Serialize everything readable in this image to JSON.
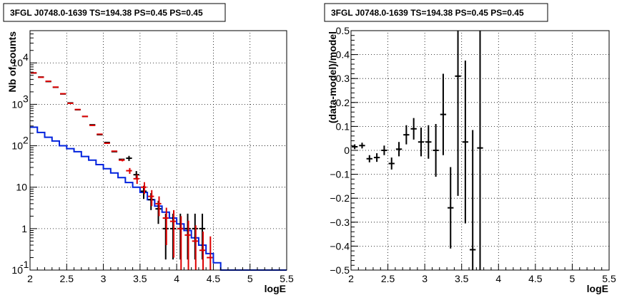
{
  "chart_data": [
    {
      "type": "histogram",
      "title": "3FGL J0748.0-1639 TS=194.38 PS=0.45 PS=0.45",
      "xlabel": "logE",
      "ylabel": "Nb of counts",
      "xlim": [
        2,
        5.5
      ],
      "ylim": [
        0.1,
        60000
      ],
      "yscale": "log",
      "grid": true,
      "colors": {
        "data": "#000000",
        "model": "#dd0000",
        "background": "#0022dd"
      },
      "xticks": [
        "2",
        "2.5",
        "3",
        "3.5",
        "4",
        "4.5",
        "5",
        "5.5"
      ],
      "yticks": [
        {
          "value": 0.1,
          "base": "10",
          "exp": "-1"
        },
        {
          "value": 1,
          "base": "1",
          "exp": ""
        },
        {
          "value": 10,
          "base": "10",
          "exp": ""
        },
        {
          "value": 100,
          "base": "10",
          "exp": "2"
        },
        {
          "value": 1000,
          "base": "10",
          "exp": "3"
        },
        {
          "value": 10000,
          "base": "10",
          "exp": "4"
        }
      ],
      "bin_edges": [
        2.0,
        2.1,
        2.2,
        2.3,
        2.4,
        2.5,
        2.6,
        2.7,
        2.8,
        2.9,
        3.0,
        3.1,
        3.2,
        3.3,
        3.4,
        3.5,
        3.6,
        3.7,
        3.8,
        3.9,
        4.0,
        4.1,
        4.2,
        4.3,
        4.4,
        4.5
      ],
      "bin_edges_note_free": true,
      "data_counts": [
        5700,
        4550,
        3550,
        2580,
        1780,
        1080,
        740,
        510,
        320,
        185,
        120,
        72,
        47,
        50,
        20,
        8,
        5,
        3,
        1,
        1,
        1,
        1,
        1,
        1,
        0
      ],
      "data_err_low": [
        0,
        0,
        0,
        0,
        0,
        0,
        0,
        0,
        0,
        0,
        0,
        0,
        0,
        7,
        4.5,
        2.8,
        2.2,
        1.7,
        0.82,
        0.82,
        0.82,
        0.82,
        0.82,
        0.82,
        0
      ],
      "data_err_high": [
        0,
        0,
        0,
        0,
        0,
        0,
        0,
        0,
        0,
        0,
        0,
        0,
        0,
        7,
        4.5,
        2.8,
        2.2,
        1.7,
        1.3,
        1.3,
        1.3,
        1.3,
        1.3,
        1.3,
        0
      ],
      "model_counts": [
        5750,
        4500,
        3600,
        2600,
        1800,
        1060,
        750,
        510,
        310,
        190,
        115,
        74,
        45,
        25,
        16,
        10,
        6,
        4,
        1.8,
        1.5,
        1,
        0.7,
        0.5,
        0.3,
        0.2
      ],
      "model_err": [
        0,
        0,
        0,
        0,
        0,
        0,
        0,
        0,
        0,
        0,
        0,
        0,
        3,
        4,
        4,
        3.2,
        2.5,
        2,
        1.4,
        1.3,
        1,
        0.85,
        0.7,
        0.55,
        0.45
      ],
      "background_counts": [
        280,
        210,
        160,
        130,
        100,
        85,
        72,
        55,
        45,
        35,
        28,
        22,
        17,
        13,
        10,
        7.5,
        5,
        3.5,
        2.5,
        1.8,
        1.3,
        0.9,
        0.6,
        0.4,
        0.25,
        0.15,
        0.1,
        0.1,
        0.1,
        0.1,
        0.1,
        0.1,
        0.1,
        0.1,
        0.1
      ],
      "background_bin_edges": [
        2.0,
        2.1,
        2.2,
        2.3,
        2.4,
        2.5,
        2.6,
        2.7,
        2.8,
        2.9,
        3.0,
        3.1,
        3.2,
        3.3,
        3.4,
        3.5,
        3.6,
        3.7,
        3.8,
        3.9,
        4.0,
        4.1,
        4.2,
        4.3,
        4.4,
        4.5,
        4.6,
        4.7,
        4.8,
        4.9,
        5.0,
        5.1,
        5.2,
        5.3,
        5.4,
        5.5
      ]
    },
    {
      "type": "scatter",
      "title": "3FGL J0748.0-1639 TS=194.38 PS=0.45 PS=0.45",
      "xlabel": "logE",
      "ylabel": "(data-model)/model",
      "xlim": [
        2,
        5.5
      ],
      "ylim": [
        -0.5,
        0.5
      ],
      "grid": true,
      "xticks": [
        "2",
        "2.5",
        "3",
        "3.5",
        "4",
        "4.5",
        "5",
        "5.5"
      ],
      "yticks": [
        "-0.5",
        "-0.4",
        "-0.3",
        "-0.2",
        "-0.1",
        "0",
        "0.1",
        "0.2",
        "0.3",
        "0.4",
        "0.5"
      ],
      "x": [
        2.05,
        2.15,
        2.25,
        2.35,
        2.45,
        2.55,
        2.65,
        2.75,
        2.85,
        2.95,
        3.05,
        3.15,
        3.25,
        3.35,
        3.45,
        3.55,
        3.65,
        3.75
      ],
      "y": [
        0.015,
        0.02,
        -0.035,
        -0.03,
        0.0,
        -0.055,
        0.005,
        0.065,
        0.09,
        0.035,
        0.035,
        0.0,
        0.15,
        -0.24,
        0.31,
        0.035,
        -0.415,
        0.01
      ],
      "err": [
        0.01,
        0.012,
        0.015,
        0.018,
        0.02,
        0.025,
        0.03,
        0.04,
        0.045,
        0.06,
        0.07,
        0.11,
        0.17,
        0.17,
        0.5,
        0.34,
        0.5,
        0.6
      ]
    }
  ]
}
